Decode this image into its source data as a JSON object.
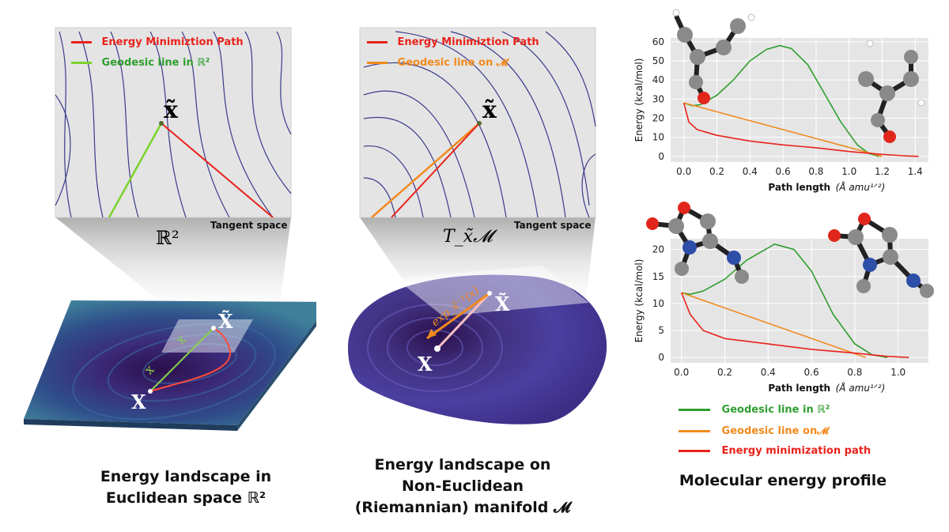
{
  "panels": {
    "euclidean": {
      "legend": {
        "path_label": "Energy Minimiztion Path",
        "geodesic_label": "Geodesic line in ℝ²"
      },
      "space_symbol": "ℝ²",
      "tangent_label": "Tangent space",
      "point_tilde": "x̃",
      "surface_point": "X",
      "surface_point_tilde": "X̃",
      "vector_label": "x",
      "title_line1": "Energy landscape in",
      "title_line2": "Euclidean space ℝ²"
    },
    "riemannian": {
      "legend": {
        "path_label": "Energy Minimiztion Path",
        "geodesic_label": "Geodesic line on 𝓜"
      },
      "space_symbol": "T_x̃𝓜",
      "tangent_label": "Tangent space",
      "point_tilde": "x̃",
      "surface_point": "X",
      "surface_point_tilde": "X̃",
      "log_map_label": "exp_x̃⁻¹(x)",
      "title_line1": "Energy landscape on",
      "title_line2": "Non-Euclidean",
      "title_line3": "(Riemannian) manifold 𝓜"
    },
    "molecular": {
      "title": "Molecular energy profile",
      "legend": {
        "geodesic_r2": "Geodesic line in ℝ²",
        "geodesic_m": "Geodesic line on𝓜",
        "energy_path": "Energy minimization path"
      }
    }
  },
  "colors": {
    "energy_path": "#e8231b",
    "geodesic_r2": "#2f9e2f",
    "geodesic_m": "#f28a1e",
    "geodesic_r2_panel": "#7bd32b",
    "contour": "#3a3a8c",
    "plot_bg": "#e5e5e5"
  },
  "chart_data": [
    {
      "type": "line",
      "title": "",
      "xlabel": "Path length",
      "xunit": "(Å amu¹ᐟ²)",
      "ylabel": "Energy (kcal/mol)",
      "xlim": [
        -0.08,
        1.48
      ],
      "ylim": [
        -3,
        62
      ],
      "xticks": [
        0.0,
        0.2,
        0.4,
        0.6,
        0.8,
        1.0,
        1.2,
        1.4
      ],
      "xtick_labels": [
        "0.0",
        "0.2",
        "0.4",
        "0.6",
        "0.8",
        "1.0",
        "1.2",
        "1.4"
      ],
      "yticks": [
        0,
        10,
        20,
        30,
        40,
        50,
        60
      ],
      "ytick_labels": [
        "0",
        "10",
        "20",
        "30",
        "40",
        "50",
        "60"
      ],
      "grid": true,
      "series": [
        {
          "key": "geodesic_r2",
          "x": [
            0.0,
            0.05,
            0.1,
            0.2,
            0.3,
            0.4,
            0.5,
            0.58,
            0.65,
            0.75,
            0.85,
            0.95,
            1.05,
            1.12,
            1.18
          ],
          "y": [
            28,
            26.5,
            27,
            32,
            40,
            50,
            56,
            58,
            56.5,
            48,
            33,
            18,
            6,
            1.5,
            0
          ]
        },
        {
          "key": "geodesic_m",
          "x": [
            0.0,
            1.2
          ],
          "y": [
            28,
            0
          ]
        },
        {
          "key": "energy_path",
          "x": [
            0.0,
            0.03,
            0.08,
            0.2,
            0.4,
            0.6,
            0.8,
            1.0,
            1.2,
            1.35,
            1.42
          ],
          "y": [
            28,
            18,
            14,
            11,
            8,
            6,
            4.5,
            2.5,
            1,
            0.2,
            0
          ]
        }
      ]
    },
    {
      "type": "line",
      "title": "",
      "xlabel": "Path length",
      "xunit": "(Å amu¹ᐟ²)",
      "ylabel": "Energy (kcal/mol)",
      "xlim": [
        -0.05,
        1.14
      ],
      "ylim": [
        -1,
        22
      ],
      "xticks": [
        0.0,
        0.2,
        0.4,
        0.6,
        0.8,
        1.0
      ],
      "xtick_labels": [
        "0.0",
        "0.2",
        "0.4",
        "0.6",
        "0.8",
        "1.0"
      ],
      "yticks": [
        0,
        5,
        10,
        15,
        20
      ],
      "ytick_labels": [
        "0",
        "5",
        "10",
        "15",
        "20"
      ],
      "grid": true,
      "series": [
        {
          "key": "geodesic_r2",
          "x": [
            0.0,
            0.04,
            0.1,
            0.2,
            0.3,
            0.43,
            0.52,
            0.6,
            0.7,
            0.8,
            0.88,
            0.95
          ],
          "y": [
            12,
            11.7,
            12.3,
            14.5,
            18,
            21,
            20,
            16,
            8,
            2.5,
            0.5,
            0
          ]
        },
        {
          "key": "geodesic_m",
          "x": [
            0.0,
            0.85
          ],
          "y": [
            12,
            0
          ]
        },
        {
          "key": "energy_path",
          "x": [
            0.0,
            0.04,
            0.1,
            0.2,
            0.4,
            0.6,
            0.8,
            0.95,
            1.05
          ],
          "y": [
            12,
            8,
            5,
            3.5,
            2.5,
            1.5,
            0.8,
            0.2,
            0
          ]
        }
      ]
    }
  ]
}
